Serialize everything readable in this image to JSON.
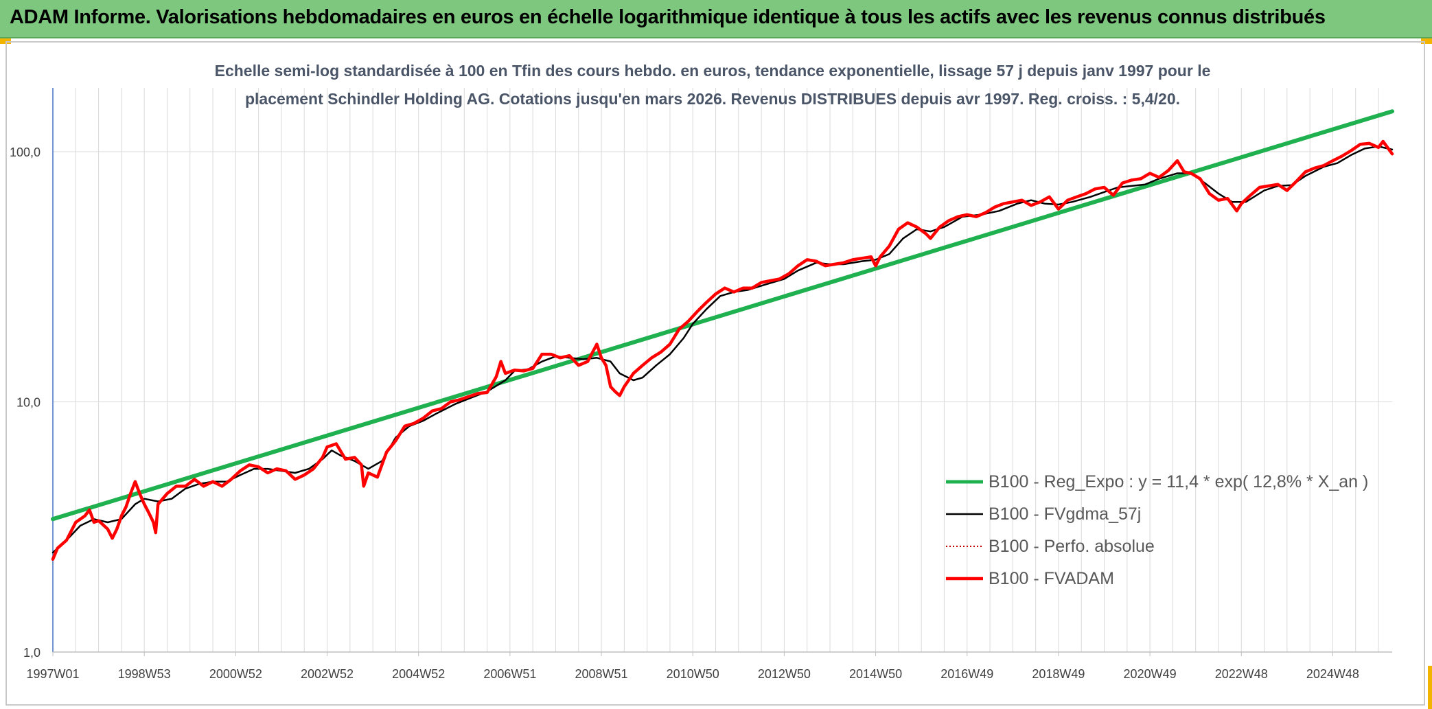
{
  "header": {
    "title": "ADAM Informe. Valorisations hebdomadaires en euros en échelle logarithmique identique à tous les actifs avec les revenus connus distribués"
  },
  "colors": {
    "banner": "#7ec77e",
    "regression": "#1fb04f",
    "fvgdma": "#000000",
    "fvadam": "#ff0000",
    "grid": "#d9d9d9"
  },
  "chart_data": {
    "type": "line",
    "title_lines": [
      "Echelle semi-log standardisée à 100 en Tfin des cours hebdo. en euros, tendance exponentielle, lissage 57 j depuis janv 1997 pour le",
      "placement Schindler Holding AG. Cotations jusqu'en mars 2026. Revenus DISTRIBUES depuis avr 1997. Reg. croiss. : 5,4/20."
    ],
    "y_scale": "log",
    "ylim": [
      1,
      180
    ],
    "xlim": [
      1997.0,
      2026.3
    ],
    "y_ticks": [
      {
        "value": 1,
        "label": "1,0"
      },
      {
        "value": 10,
        "label": "10,0"
      },
      {
        "value": 100,
        "label": "100,0"
      }
    ],
    "x_ticks": [
      {
        "value": 1997.0,
        "label": "1997W01"
      },
      {
        "value": 1999.0,
        "label": "1998W53"
      },
      {
        "value": 2001.0,
        "label": "2000W52"
      },
      {
        "value": 2003.0,
        "label": "2002W52"
      },
      {
        "value": 2005.0,
        "label": "2004W52"
      },
      {
        "value": 2007.0,
        "label": "2006W51"
      },
      {
        "value": 2009.0,
        "label": "2008W51"
      },
      {
        "value": 2011.0,
        "label": "2010W50"
      },
      {
        "value": 2013.0,
        "label": "2012W50"
      },
      {
        "value": 2015.0,
        "label": "2014W50"
      },
      {
        "value": 2017.0,
        "label": "2016W49"
      },
      {
        "value": 2019.0,
        "label": "2018W49"
      },
      {
        "value": 2021.0,
        "label": "2020W49"
      },
      {
        "value": 2023.0,
        "label": "2022W48"
      },
      {
        "value": 2025.0,
        "label": "2024W48"
      }
    ],
    "grid": true,
    "legend_position": "bottom-right",
    "series": [
      {
        "name": "B100 - Reg_Expo : y = 11,4 * exp( 12,8% *  X_an )",
        "color": "#1fb04f",
        "style": "solid",
        "width": 6,
        "points": [
          [
            1997.0,
            3.4
          ],
          [
            2026.3,
            145
          ]
        ]
      },
      {
        "name": "B100 - FVgdma_57j",
        "color": "#000000",
        "style": "solid",
        "width": 2.5,
        "points": [
          [
            1997.0,
            2.5
          ],
          [
            1997.3,
            2.8
          ],
          [
            1997.6,
            3.2
          ],
          [
            1997.9,
            3.4
          ],
          [
            1998.2,
            3.3
          ],
          [
            1998.5,
            3.4
          ],
          [
            1998.8,
            3.9
          ],
          [
            1999.0,
            4.1
          ],
          [
            1999.3,
            4.0
          ],
          [
            1999.6,
            4.1
          ],
          [
            1999.9,
            4.5
          ],
          [
            2000.2,
            4.7
          ],
          [
            2000.5,
            4.8
          ],
          [
            2000.8,
            4.8
          ],
          [
            2001.1,
            5.1
          ],
          [
            2001.4,
            5.4
          ],
          [
            2001.7,
            5.4
          ],
          [
            2002.0,
            5.3
          ],
          [
            2002.3,
            5.2
          ],
          [
            2002.6,
            5.4
          ],
          [
            2002.9,
            5.9
          ],
          [
            2003.1,
            6.4
          ],
          [
            2003.3,
            6.1
          ],
          [
            2003.6,
            5.8
          ],
          [
            2003.9,
            5.4
          ],
          [
            2004.2,
            5.8
          ],
          [
            2004.5,
            7.2
          ],
          [
            2004.8,
            8.0
          ],
          [
            2005.1,
            8.4
          ],
          [
            2005.4,
            9.0
          ],
          [
            2005.8,
            9.8
          ],
          [
            2006.1,
            10.3
          ],
          [
            2006.5,
            11.0
          ],
          [
            2006.9,
            12.2
          ],
          [
            2007.1,
            13.3
          ],
          [
            2007.4,
            13.5
          ],
          [
            2007.7,
            14.5
          ],
          [
            2008.0,
            15.2
          ],
          [
            2008.3,
            15.0
          ],
          [
            2008.6,
            14.8
          ],
          [
            2008.9,
            15.0
          ],
          [
            2009.2,
            14.5
          ],
          [
            2009.4,
            13.0
          ],
          [
            2009.7,
            12.2
          ],
          [
            2009.9,
            12.5
          ],
          [
            2010.2,
            14.0
          ],
          [
            2010.5,
            15.5
          ],
          [
            2010.8,
            18.0
          ],
          [
            2011.0,
            20.5
          ],
          [
            2011.3,
            23.5
          ],
          [
            2011.6,
            26.5
          ],
          [
            2011.9,
            27.5
          ],
          [
            2012.2,
            28.0
          ],
          [
            2012.6,
            29.5
          ],
          [
            2013.0,
            31.0
          ],
          [
            2013.3,
            33.5
          ],
          [
            2013.7,
            36.0
          ],
          [
            2014.0,
            35.5
          ],
          [
            2014.3,
            35.5
          ],
          [
            2014.7,
            36.5
          ],
          [
            2015.0,
            37.0
          ],
          [
            2015.3,
            39.0
          ],
          [
            2015.6,
            45.0
          ],
          [
            2015.9,
            49.0
          ],
          [
            2016.2,
            48.0
          ],
          [
            2016.5,
            50.0
          ],
          [
            2016.9,
            55.0
          ],
          [
            2017.3,
            56.0
          ],
          [
            2017.7,
            58.0
          ],
          [
            2018.1,
            62.0
          ],
          [
            2018.4,
            64.0
          ],
          [
            2018.7,
            62.0
          ],
          [
            2019.0,
            61.5
          ],
          [
            2019.3,
            63.0
          ],
          [
            2019.7,
            66.0
          ],
          [
            2020.0,
            69.0
          ],
          [
            2020.3,
            72.0
          ],
          [
            2020.6,
            73.0
          ],
          [
            2020.9,
            74.0
          ],
          [
            2021.2,
            78.0
          ],
          [
            2021.6,
            82.0
          ],
          [
            2021.9,
            82.0
          ],
          [
            2022.2,
            75.0
          ],
          [
            2022.5,
            68.0
          ],
          [
            2022.8,
            63.0
          ],
          [
            2023.1,
            63.0
          ],
          [
            2023.5,
            70.0
          ],
          [
            2023.8,
            73.0
          ],
          [
            2024.1,
            73.5
          ],
          [
            2024.4,
            80.0
          ],
          [
            2024.8,
            87.0
          ],
          [
            2025.1,
            90.0
          ],
          [
            2025.4,
            97.0
          ],
          [
            2025.7,
            103.0
          ],
          [
            2026.0,
            105.0
          ],
          [
            2026.3,
            102.0
          ]
        ]
      },
      {
        "name": "B100 - Perfo. absolue",
        "color": "#c00000",
        "style": "dotted",
        "width": 2,
        "points": []
      },
      {
        "name": "B100 - FVADAM",
        "color": "#ff0000",
        "style": "solid",
        "width": 4.5,
        "points": [
          [
            1997.0,
            2.35
          ],
          [
            1997.1,
            2.6
          ],
          [
            1997.3,
            2.8
          ],
          [
            1997.5,
            3.3
          ],
          [
            1997.7,
            3.5
          ],
          [
            1997.8,
            3.7
          ],
          [
            1997.9,
            3.3
          ],
          [
            1998.0,
            3.35
          ],
          [
            1998.2,
            3.1
          ],
          [
            1998.3,
            2.85
          ],
          [
            1998.4,
            3.1
          ],
          [
            1998.5,
            3.5
          ],
          [
            1998.6,
            3.8
          ],
          [
            1998.7,
            4.3
          ],
          [
            1998.8,
            4.8
          ],
          [
            1998.9,
            4.3
          ],
          [
            1999.0,
            3.9
          ],
          [
            1999.1,
            3.6
          ],
          [
            1999.2,
            3.3
          ],
          [
            1999.25,
            3.0
          ],
          [
            1999.3,
            3.9
          ],
          [
            1999.5,
            4.3
          ],
          [
            1999.7,
            4.6
          ],
          [
            1999.9,
            4.6
          ],
          [
            2000.1,
            4.9
          ],
          [
            2000.3,
            4.6
          ],
          [
            2000.5,
            4.8
          ],
          [
            2000.7,
            4.6
          ],
          [
            2000.9,
            4.9
          ],
          [
            2001.1,
            5.3
          ],
          [
            2001.3,
            5.6
          ],
          [
            2001.5,
            5.5
          ],
          [
            2001.7,
            5.2
          ],
          [
            2001.9,
            5.4
          ],
          [
            2002.1,
            5.3
          ],
          [
            2002.3,
            4.9
          ],
          [
            2002.5,
            5.1
          ],
          [
            2002.7,
            5.4
          ],
          [
            2002.9,
            6.0
          ],
          [
            2003.0,
            6.6
          ],
          [
            2003.2,
            6.8
          ],
          [
            2003.4,
            5.9
          ],
          [
            2003.6,
            6.0
          ],
          [
            2003.75,
            5.6
          ],
          [
            2003.8,
            4.6
          ],
          [
            2003.9,
            5.2
          ],
          [
            2004.1,
            5.0
          ],
          [
            2004.3,
            6.3
          ],
          [
            2004.5,
            7.0
          ],
          [
            2004.7,
            8.0
          ],
          [
            2004.9,
            8.2
          ],
          [
            2005.1,
            8.6
          ],
          [
            2005.3,
            9.2
          ],
          [
            2005.5,
            9.4
          ],
          [
            2005.7,
            10.0
          ],
          [
            2005.9,
            10.2
          ],
          [
            2006.1,
            10.5
          ],
          [
            2006.3,
            10.8
          ],
          [
            2006.5,
            10.9
          ],
          [
            2006.7,
            12.6
          ],
          [
            2006.8,
            14.5
          ],
          [
            2006.9,
            13.0
          ],
          [
            2007.1,
            13.4
          ],
          [
            2007.3,
            13.3
          ],
          [
            2007.5,
            13.6
          ],
          [
            2007.7,
            15.5
          ],
          [
            2007.9,
            15.5
          ],
          [
            2008.1,
            15.0
          ],
          [
            2008.3,
            15.3
          ],
          [
            2008.5,
            14.0
          ],
          [
            2008.7,
            14.5
          ],
          [
            2008.9,
            17.0
          ],
          [
            2009.0,
            15.0
          ],
          [
            2009.1,
            14.0
          ],
          [
            2009.2,
            11.5
          ],
          [
            2009.3,
            11.0
          ],
          [
            2009.4,
            10.6
          ],
          [
            2009.5,
            11.5
          ],
          [
            2009.7,
            13.0
          ],
          [
            2009.9,
            14.0
          ],
          [
            2010.1,
            15.0
          ],
          [
            2010.3,
            15.8
          ],
          [
            2010.5,
            17.0
          ],
          [
            2010.7,
            19.5
          ],
          [
            2010.9,
            21.0
          ],
          [
            2011.1,
            23.0
          ],
          [
            2011.3,
            25.0
          ],
          [
            2011.5,
            27.0
          ],
          [
            2011.7,
            28.5
          ],
          [
            2011.9,
            27.5
          ],
          [
            2012.1,
            28.5
          ],
          [
            2012.3,
            28.5
          ],
          [
            2012.5,
            30.0
          ],
          [
            2012.7,
            30.5
          ],
          [
            2012.9,
            31.0
          ],
          [
            2013.1,
            32.5
          ],
          [
            2013.3,
            35.0
          ],
          [
            2013.5,
            37.0
          ],
          [
            2013.7,
            36.5
          ],
          [
            2013.9,
            35.0
          ],
          [
            2014.1,
            35.5
          ],
          [
            2014.3,
            36.0
          ],
          [
            2014.5,
            37.0
          ],
          [
            2014.7,
            37.5
          ],
          [
            2014.9,
            38.0
          ],
          [
            2015.0,
            35.0
          ],
          [
            2015.1,
            38.0
          ],
          [
            2015.3,
            42.0
          ],
          [
            2015.5,
            49.0
          ],
          [
            2015.7,
            52.0
          ],
          [
            2015.9,
            50.0
          ],
          [
            2016.1,
            47.0
          ],
          [
            2016.2,
            45.0
          ],
          [
            2016.4,
            50.0
          ],
          [
            2016.6,
            53.0
          ],
          [
            2016.8,
            55.0
          ],
          [
            2017.0,
            56.0
          ],
          [
            2017.2,
            55.0
          ],
          [
            2017.4,
            57.0
          ],
          [
            2017.6,
            60.0
          ],
          [
            2017.8,
            62.0
          ],
          [
            2018.0,
            63.0
          ],
          [
            2018.2,
            64.0
          ],
          [
            2018.4,
            61.0
          ],
          [
            2018.6,
            63.0
          ],
          [
            2018.8,
            66.0
          ],
          [
            2019.0,
            59.0
          ],
          [
            2019.2,
            64.0
          ],
          [
            2019.4,
            66.0
          ],
          [
            2019.6,
            68.0
          ],
          [
            2019.8,
            71.0
          ],
          [
            2020.0,
            72.0
          ],
          [
            2020.2,
            67.0
          ],
          [
            2020.4,
            75.0
          ],
          [
            2020.6,
            77.0
          ],
          [
            2020.8,
            78.0
          ],
          [
            2021.0,
            82.0
          ],
          [
            2021.2,
            79.0
          ],
          [
            2021.4,
            84.0
          ],
          [
            2021.6,
            92.0
          ],
          [
            2021.75,
            83.0
          ],
          [
            2021.9,
            82.0
          ],
          [
            2022.1,
            78.0
          ],
          [
            2022.3,
            68.0
          ],
          [
            2022.5,
            64.0
          ],
          [
            2022.7,
            65.0
          ],
          [
            2022.9,
            58.0
          ],
          [
            2023.0,
            62.0
          ],
          [
            2023.2,
            67.0
          ],
          [
            2023.4,
            72.0
          ],
          [
            2023.6,
            73.0
          ],
          [
            2023.8,
            74.0
          ],
          [
            2024.0,
            70.0
          ],
          [
            2024.2,
            76.0
          ],
          [
            2024.4,
            83.0
          ],
          [
            2024.6,
            86.0
          ],
          [
            2024.8,
            88.0
          ],
          [
            2025.0,
            92.0
          ],
          [
            2025.2,
            96.0
          ],
          [
            2025.4,
            101.0
          ],
          [
            2025.6,
            107.0
          ],
          [
            2025.8,
            108.0
          ],
          [
            2026.0,
            104.0
          ],
          [
            2026.1,
            110.0
          ],
          [
            2026.3,
            98.0
          ]
        ]
      }
    ]
  }
}
